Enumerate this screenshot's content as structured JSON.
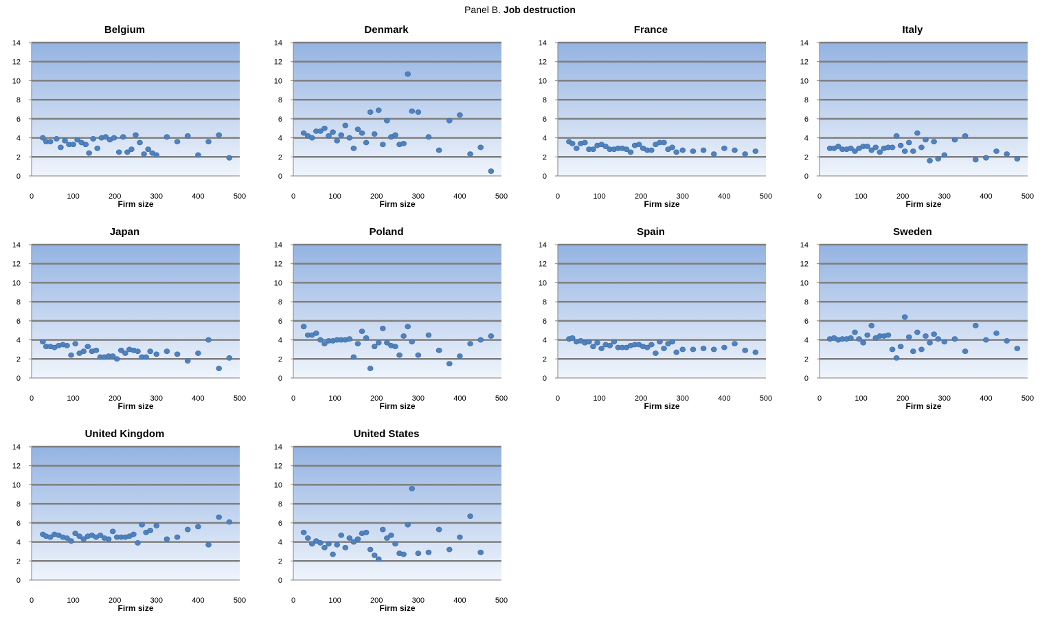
{
  "figure": {
    "prefix": "Panel B.",
    "title": "Job destruction"
  },
  "colors": {
    "marker": "#4f81bd",
    "plot_top": "#94b3e2",
    "plot_bottom": "#f0f5fc",
    "grid": "#7f7f7f"
  },
  "chart_data": [
    {
      "type": "scatter",
      "title": "Belgium",
      "xlabel": "Firm size",
      "ylabel": "",
      "xlim": [
        0,
        500
      ],
      "ylim": [
        0,
        14
      ],
      "xticks": [
        0,
        100,
        200,
        300,
        400,
        500
      ],
      "yticks": [
        0,
        2,
        4,
        6,
        8,
        10,
        12,
        14
      ],
      "x": [
        27,
        35,
        45,
        60,
        70,
        80,
        90,
        100,
        110,
        120,
        130,
        138,
        148,
        158,
        168,
        178,
        188,
        198,
        210,
        220,
        230,
        240,
        250,
        260,
        270,
        280,
        290,
        300,
        325,
        350,
        375,
        400,
        425,
        450,
        475
      ],
      "y": [
        4.0,
        3.6,
        3.6,
        3.9,
        3.0,
        3.7,
        3.3,
        3.3,
        3.8,
        3.5,
        3.3,
        2.4,
        3.9,
        2.9,
        4.0,
        4.1,
        3.8,
        4.0,
        2.5,
        4.1,
        2.5,
        2.8,
        4.3,
        3.5,
        2.3,
        2.8,
        2.4,
        2.2,
        4.1,
        3.6,
        4.2,
        2.2,
        3.6,
        4.3,
        1.9
      ]
    },
    {
      "type": "scatter",
      "title": "Denmark",
      "xlabel": "Firm size",
      "ylabel": "",
      "xlim": [
        0,
        500
      ],
      "ylim": [
        0,
        14
      ],
      "xticks": [
        0,
        100,
        200,
        300,
        400,
        500
      ],
      "yticks": [
        0,
        2,
        4,
        6,
        8,
        10,
        12,
        14
      ],
      "x": [
        25,
        35,
        45,
        55,
        65,
        75,
        85,
        95,
        105,
        115,
        125,
        135,
        145,
        155,
        165,
        175,
        185,
        195,
        205,
        215,
        225,
        235,
        245,
        255,
        265,
        275,
        285,
        300,
        325,
        350,
        375,
        400,
        425,
        450,
        475
      ],
      "y": [
        4.5,
        4.2,
        4.0,
        4.7,
        4.7,
        5.0,
        4.2,
        4.6,
        3.7,
        4.3,
        5.3,
        4.0,
        2.9,
        4.9,
        4.5,
        3.5,
        6.7,
        4.4,
        6.9,
        3.3,
        5.8,
        4.1,
        4.3,
        3.3,
        3.4,
        10.7,
        6.8,
        6.7,
        4.1,
        2.7,
        5.8,
        6.4,
        2.3,
        3.0,
        0.5
      ]
    },
    {
      "type": "scatter",
      "title": "France",
      "xlabel": "Firm size",
      "ylabel": "",
      "xlim": [
        0,
        500
      ],
      "ylim": [
        0,
        14
      ],
      "xticks": [
        0,
        100,
        200,
        300,
        400,
        500
      ],
      "yticks": [
        0,
        2,
        4,
        6,
        8,
        10,
        12,
        14
      ],
      "x": [
        27,
        35,
        45,
        55,
        65,
        75,
        85,
        95,
        105,
        115,
        125,
        135,
        145,
        155,
        165,
        175,
        185,
        195,
        205,
        215,
        225,
        235,
        245,
        255,
        265,
        275,
        285,
        300,
        325,
        350,
        375,
        400,
        425,
        450,
        475
      ],
      "y": [
        3.6,
        3.4,
        2.9,
        3.4,
        3.5,
        2.8,
        2.8,
        3.2,
        3.3,
        3.1,
        2.8,
        2.8,
        2.9,
        2.9,
        2.8,
        2.5,
        3.2,
        3.3,
        2.9,
        2.7,
        2.7,
        3.3,
        3.5,
        3.5,
        2.8,
        3.0,
        2.5,
        2.7,
        2.6,
        2.7,
        2.3,
        2.9,
        2.7,
        2.3,
        2.6
      ]
    },
    {
      "type": "scatter",
      "title": "Italy",
      "xlabel": "Firm size",
      "ylabel": "",
      "xlim": [
        0,
        500
      ],
      "ylim": [
        0,
        14
      ],
      "xticks": [
        0,
        100,
        200,
        300,
        400,
        500
      ],
      "yticks": [
        0,
        2,
        4,
        6,
        8,
        10,
        12,
        14
      ],
      "x": [
        25,
        35,
        45,
        55,
        65,
        75,
        85,
        95,
        105,
        115,
        125,
        135,
        145,
        155,
        165,
        175,
        185,
        195,
        205,
        215,
        225,
        235,
        245,
        255,
        265,
        275,
        285,
        300,
        325,
        350,
        375,
        400,
        425,
        450,
        475
      ],
      "y": [
        2.9,
        2.9,
        3.1,
        2.8,
        2.8,
        2.9,
        2.6,
        2.9,
        3.1,
        3.1,
        2.7,
        3.0,
        2.5,
        2.9,
        3.0,
        3.0,
        4.2,
        3.2,
        2.6,
        3.5,
        2.6,
        4.5,
        3.0,
        3.8,
        1.6,
        3.6,
        1.8,
        2.2,
        3.8,
        4.2,
        1.7,
        1.9,
        2.6,
        2.3,
        1.8
      ]
    },
    {
      "type": "scatter",
      "title": "Japan",
      "xlabel": "Firm size",
      "ylabel": "",
      "xlim": [
        0,
        500
      ],
      "ylim": [
        0,
        14
      ],
      "xticks": [
        0,
        100,
        200,
        300,
        400,
        500
      ],
      "yticks": [
        0,
        2,
        4,
        6,
        8,
        10,
        12,
        14
      ],
      "x": [
        27,
        35,
        45,
        55,
        65,
        75,
        85,
        95,
        105,
        115,
        125,
        135,
        145,
        155,
        165,
        175,
        185,
        195,
        205,
        215,
        225,
        235,
        245,
        255,
        265,
        275,
        285,
        300,
        325,
        350,
        375,
        400,
        425,
        450,
        475
      ],
      "y": [
        3.8,
        3.3,
        3.3,
        3.2,
        3.4,
        3.5,
        3.4,
        2.4,
        3.6,
        2.6,
        2.8,
        3.3,
        2.8,
        2.9,
        2.2,
        2.2,
        2.3,
        2.3,
        2.0,
        2.9,
        2.6,
        3.0,
        2.9,
        2.8,
        2.2,
        2.2,
        2.8,
        2.5,
        2.8,
        2.5,
        1.8,
        2.6,
        4.0,
        1.0,
        2.1
      ]
    },
    {
      "type": "scatter",
      "title": "Poland",
      "xlabel": "Firm size",
      "ylabel": "",
      "xlim": [
        0,
        500
      ],
      "ylim": [
        0,
        14
      ],
      "xticks": [
        0,
        100,
        200,
        300,
        400,
        500
      ],
      "yticks": [
        0,
        2,
        4,
        6,
        8,
        10,
        12,
        14
      ],
      "x": [
        25,
        35,
        45,
        55,
        65,
        75,
        85,
        95,
        105,
        115,
        125,
        135,
        145,
        155,
        165,
        175,
        185,
        195,
        205,
        215,
        225,
        235,
        245,
        255,
        265,
        275,
        285,
        300,
        325,
        350,
        375,
        400,
        425,
        450,
        475
      ],
      "y": [
        5.4,
        4.5,
        4.5,
        4.7,
        4.0,
        3.6,
        3.9,
        3.9,
        4.0,
        4.0,
        4.0,
        4.1,
        2.2,
        3.6,
        4.9,
        4.2,
        1.0,
        3.3,
        3.7,
        5.2,
        3.7,
        3.4,
        3.3,
        2.4,
        4.4,
        5.4,
        3.8,
        2.4,
        4.5,
        2.9,
        1.5,
        2.3,
        3.6,
        4.0,
        4.4
      ]
    },
    {
      "type": "scatter",
      "title": "Spain",
      "xlabel": "Firm size",
      "ylabel": "",
      "xlim": [
        0,
        500
      ],
      "ylim": [
        0,
        14
      ],
      "xticks": [
        0,
        100,
        200,
        300,
        400,
        500
      ],
      "yticks": [
        0,
        2,
        4,
        6,
        8,
        10,
        12,
        14
      ],
      "x": [
        27,
        35,
        45,
        55,
        65,
        75,
        85,
        95,
        105,
        115,
        125,
        135,
        145,
        155,
        165,
        175,
        185,
        195,
        205,
        215,
        225,
        235,
        245,
        255,
        265,
        275,
        285,
        300,
        325,
        350,
        375,
        400,
        425,
        450,
        475
      ],
      "y": [
        4.1,
        4.2,
        3.8,
        3.9,
        3.7,
        3.8,
        3.3,
        3.7,
        3.1,
        3.5,
        3.4,
        3.8,
        3.2,
        3.2,
        3.2,
        3.4,
        3.5,
        3.5,
        3.3,
        3.2,
        3.5,
        2.6,
        3.8,
        3.1,
        3.6,
        3.8,
        2.7,
        3.0,
        3.0,
        3.1,
        3.0,
        3.2,
        3.6,
        2.9,
        2.7
      ]
    },
    {
      "type": "scatter",
      "title": "Sweden",
      "xlabel": "Firm size",
      "ylabel": "",
      "xlim": [
        0,
        500
      ],
      "ylim": [
        0,
        14
      ],
      "xticks": [
        0,
        100,
        200,
        300,
        400,
        500
      ],
      "yticks": [
        0,
        2,
        4,
        6,
        8,
        10,
        12,
        14
      ],
      "x": [
        25,
        35,
        45,
        55,
        65,
        75,
        85,
        95,
        105,
        115,
        125,
        135,
        145,
        155,
        165,
        175,
        185,
        195,
        205,
        215,
        225,
        235,
        245,
        255,
        265,
        275,
        285,
        300,
        325,
        350,
        375,
        400,
        425,
        450,
        475
      ],
      "y": [
        4.1,
        4.2,
        4.0,
        4.1,
        4.1,
        4.2,
        4.8,
        4.1,
        3.7,
        4.5,
        5.5,
        4.2,
        4.4,
        4.4,
        4.5,
        3.0,
        2.1,
        3.3,
        6.4,
        4.3,
        2.8,
        4.8,
        3.0,
        4.4,
        3.7,
        4.6,
        4.1,
        3.8,
        4.1,
        2.8,
        5.5,
        4.0,
        4.7,
        3.9,
        3.1
      ]
    },
    {
      "type": "scatter",
      "title": "United Kingdom",
      "xlabel": "Firm size",
      "ylabel": "",
      "xlim": [
        0,
        500
      ],
      "ylim": [
        0,
        14
      ],
      "xticks": [
        0,
        100,
        200,
        300,
        400,
        500
      ],
      "yticks": [
        0,
        2,
        4,
        6,
        8,
        10,
        12,
        14
      ],
      "x": [
        27,
        35,
        45,
        55,
        65,
        75,
        85,
        95,
        105,
        115,
        125,
        135,
        145,
        155,
        165,
        175,
        185,
        195,
        205,
        215,
        225,
        235,
        245,
        255,
        265,
        275,
        285,
        300,
        325,
        350,
        375,
        400,
        425,
        450,
        475
      ],
      "y": [
        4.8,
        4.6,
        4.5,
        4.8,
        4.7,
        4.5,
        4.4,
        4.1,
        4.9,
        4.6,
        4.3,
        4.6,
        4.7,
        4.5,
        4.7,
        4.4,
        4.3,
        5.1,
        4.5,
        4.5,
        4.5,
        4.6,
        4.8,
        3.9,
        5.8,
        5.0,
        5.2,
        5.7,
        4.3,
        4.5,
        5.3,
        5.6,
        3.7,
        6.6,
        6.1
      ]
    },
    {
      "type": "scatter",
      "title": "United States",
      "xlabel": "Firm size",
      "ylabel": "",
      "xlim": [
        0,
        500
      ],
      "ylim": [
        0,
        14
      ],
      "xticks": [
        0,
        100,
        200,
        300,
        400,
        500
      ],
      "yticks": [
        0,
        2,
        4,
        6,
        8,
        10,
        12,
        14
      ],
      "x": [
        25,
        35,
        45,
        55,
        65,
        75,
        85,
        95,
        105,
        115,
        125,
        135,
        145,
        155,
        165,
        175,
        185,
        195,
        205,
        215,
        225,
        235,
        245,
        255,
        265,
        275,
        285,
        300,
        325,
        350,
        375,
        400,
        425,
        450
      ],
      "y": [
        5.0,
        4.4,
        3.8,
        4.1,
        3.9,
        3.4,
        3.8,
        2.7,
        3.7,
        4.7,
        3.4,
        4.4,
        4.0,
        4.3,
        4.9,
        5.0,
        3.2,
        2.6,
        2.2,
        5.3,
        4.4,
        4.7,
        3.8,
        2.8,
        2.7,
        5.8,
        9.6,
        2.8,
        2.9,
        5.3,
        3.2,
        4.5,
        6.7,
        2.9
      ]
    }
  ]
}
